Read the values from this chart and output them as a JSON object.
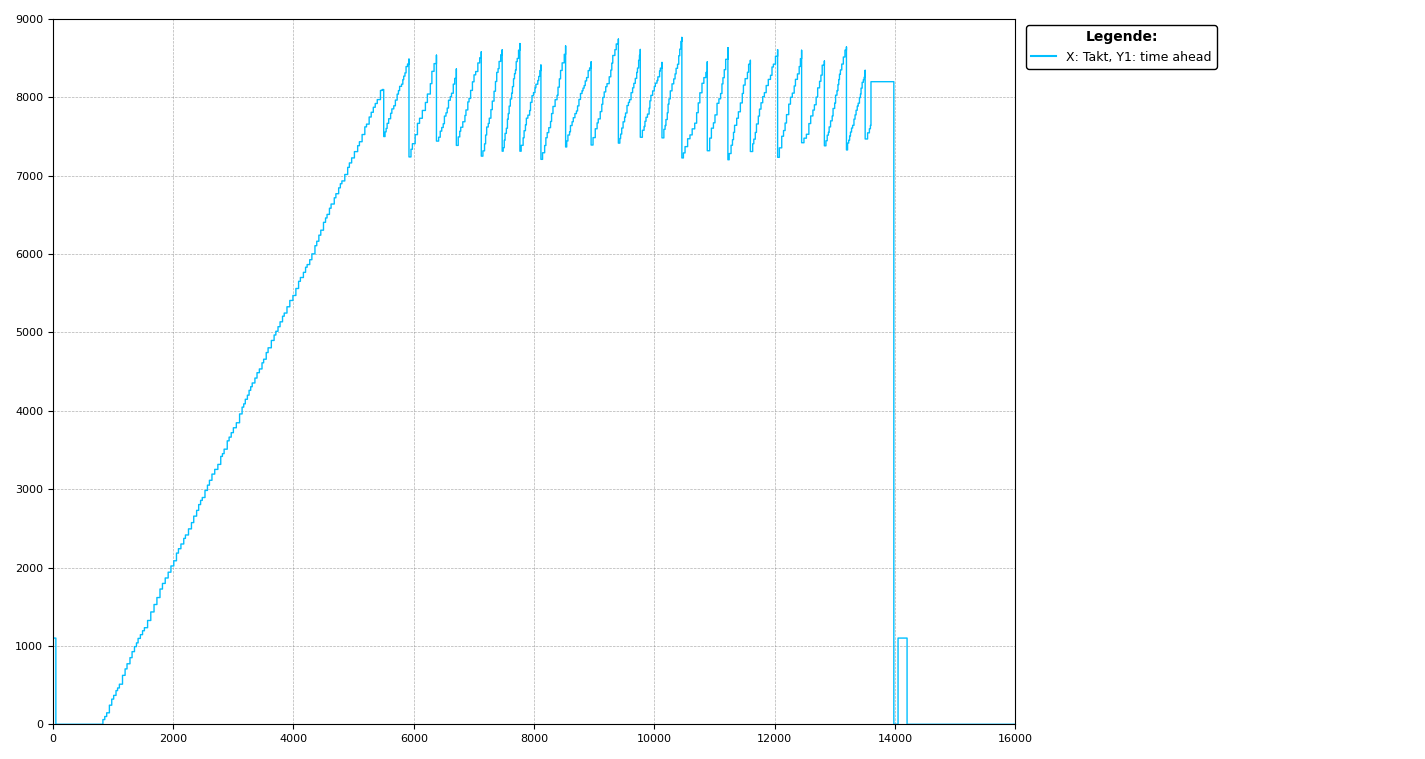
{
  "line_color": "#00BFFF",
  "line_width": 1.0,
  "background_color": "#ffffff",
  "grid_color": "#808080",
  "grid_linestyle": "--",
  "xlim": [
    0,
    16000
  ],
  "ylim": [
    0,
    9000
  ],
  "xticks": [
    0,
    2000,
    4000,
    6000,
    8000,
    10000,
    12000,
    14000,
    16000
  ],
  "yticks": [
    0,
    1000,
    2000,
    3000,
    4000,
    5000,
    6000,
    7000,
    8000,
    9000
  ],
  "legend_title": "Legende:",
  "legend_label": "X: Takt, Y1: time ahead",
  "legend_fontsize": 9,
  "tick_fontsize": 8,
  "phase1_rise_start_x": 800,
  "phase1_rise_end_x": 5500,
  "phase1_rise_end_y": 8100,
  "osc_start_x": 5500,
  "osc_end_x": 13600,
  "osc_lo": 7500,
  "osc_hi": 8500,
  "flat_start_x": 13600,
  "flat_end_x": 13980,
  "flat_y": 8200,
  "spike_peak_x": 14100,
  "spike_end_x": 14250,
  "spike_y": 1100
}
